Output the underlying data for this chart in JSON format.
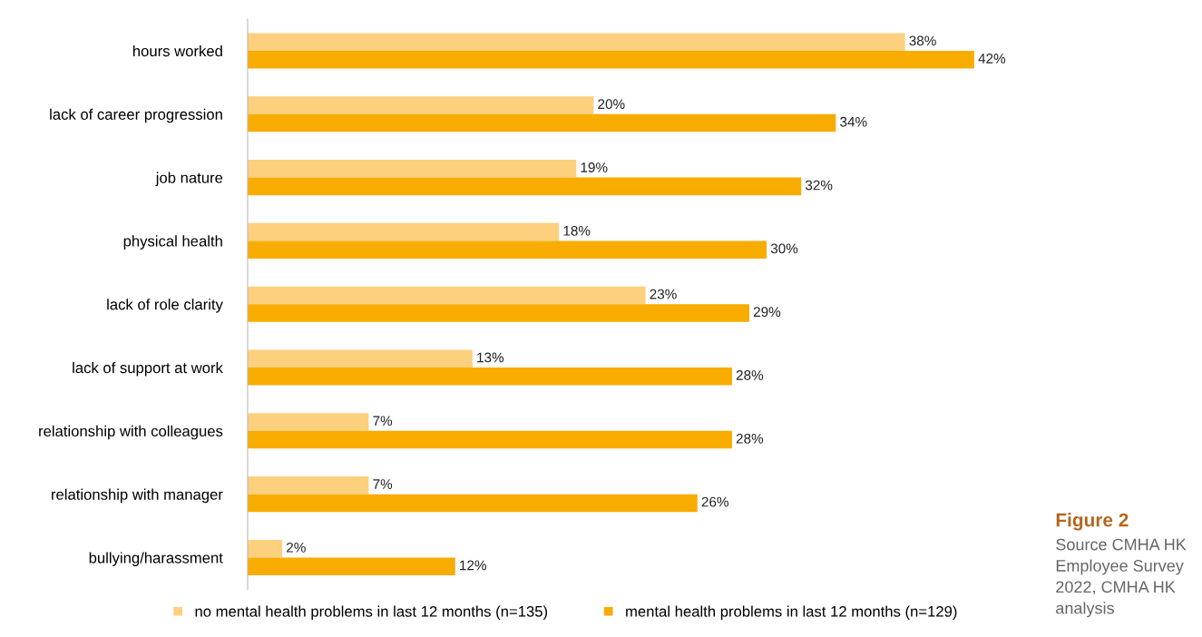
{
  "chart_data": {
    "type": "bar",
    "orientation": "horizontal",
    "categories": [
      "hours worked",
      "lack of career progression",
      "job nature",
      "physical health",
      "lack of role clarity",
      "lack of support at work",
      "relationship with colleagues",
      "relationship with manager",
      "bullying/harassment"
    ],
    "series": [
      {
        "name": "no mental health problems in last 12 months (n=135)",
        "color": "#fdd07e",
        "values": [
          38,
          20,
          19,
          18,
          23,
          13,
          7,
          7,
          2
        ],
        "value_labels": [
          "38%",
          "20%",
          "19%",
          "18%",
          "23%",
          "13%",
          "7%",
          "7%",
          "2%"
        ]
      },
      {
        "name": "mental health problems in last 12 months (n=129)",
        "color": "#f8ac00",
        "values": [
          42,
          34,
          32,
          30,
          29,
          28,
          28,
          26,
          12
        ],
        "value_labels": [
          "42%",
          "34%",
          "32%",
          "30%",
          "29%",
          "28%",
          "28%",
          "26%",
          "12%"
        ]
      }
    ],
    "grid": false,
    "legend": "bottom",
    "tick_labels": "y",
    "annotations": [
      "Figure 2",
      "Source CMHA HK Employee Survey 2022, CMHA HK analysis"
    ]
  }
}
